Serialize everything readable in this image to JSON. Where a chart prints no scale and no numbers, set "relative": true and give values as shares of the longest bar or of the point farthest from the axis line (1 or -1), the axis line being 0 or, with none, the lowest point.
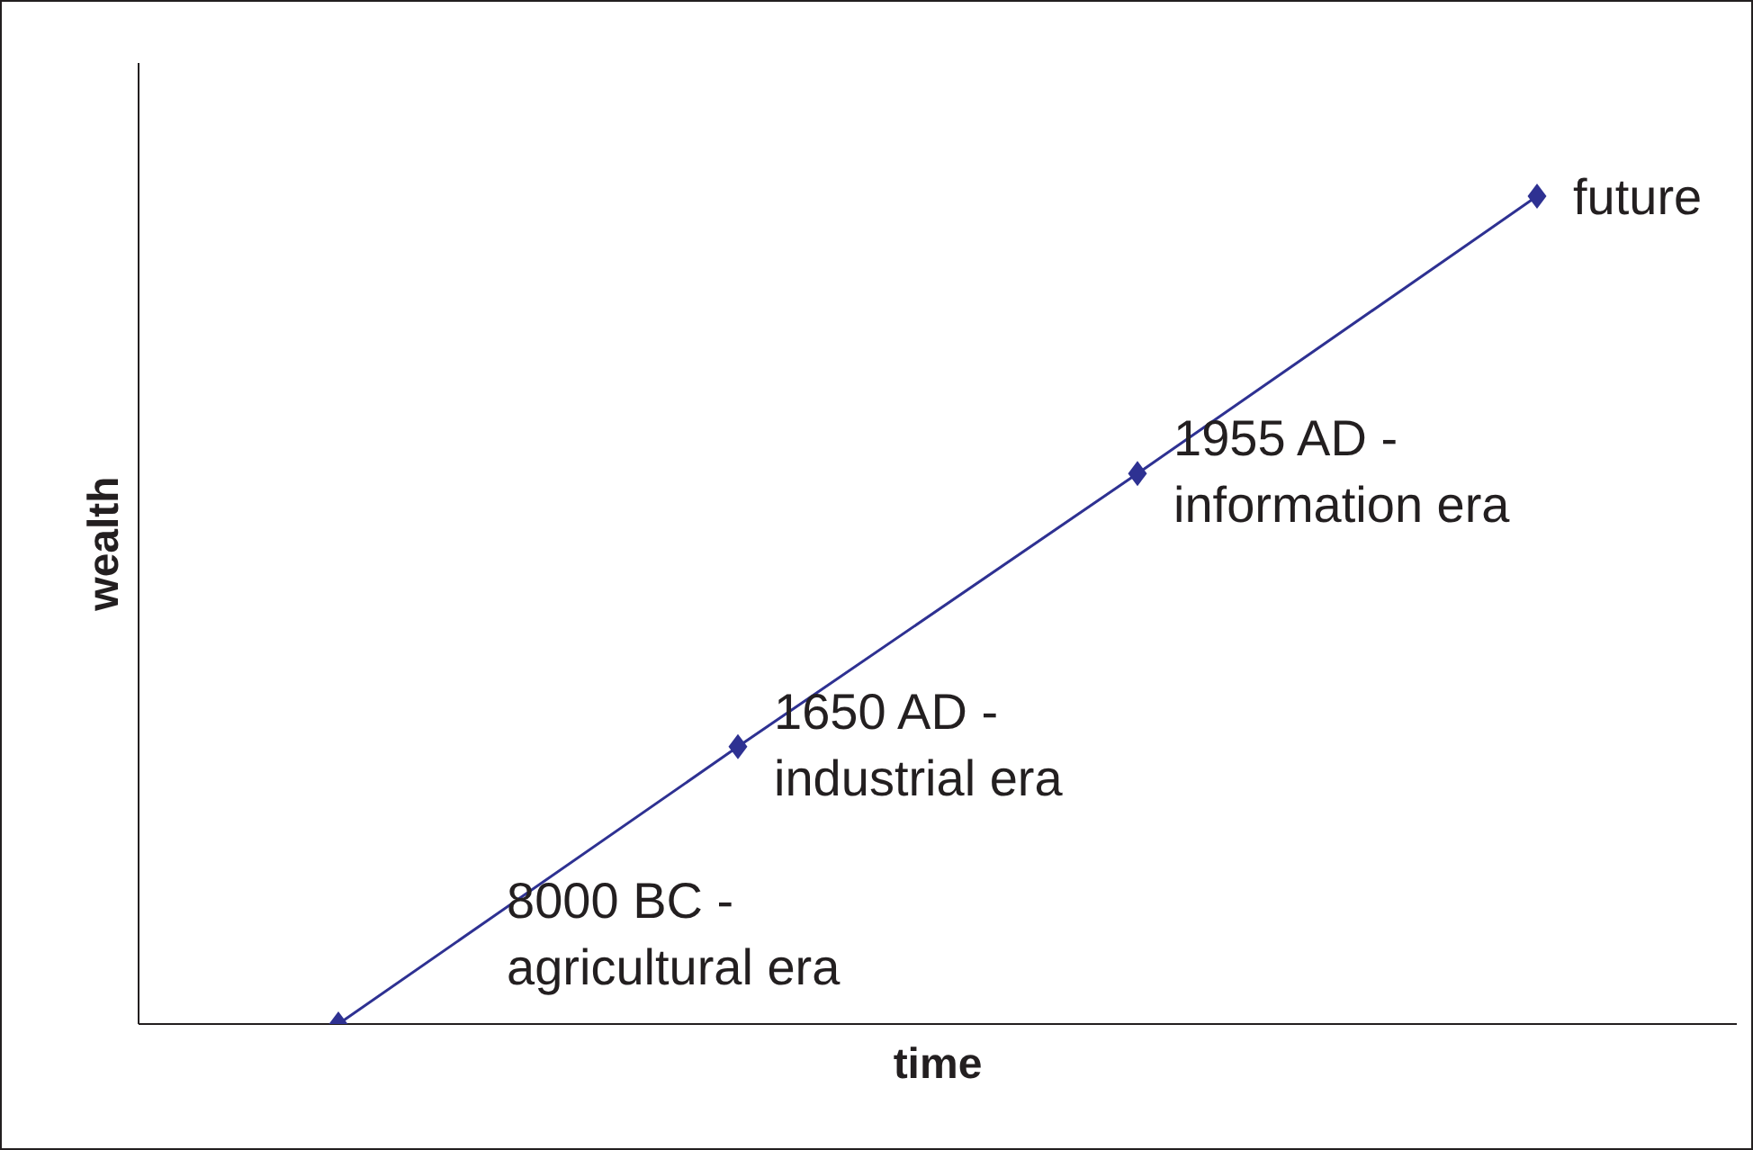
{
  "chart_data": {
    "type": "line",
    "xlabel": "time",
    "ylabel": "wealth",
    "relative": true,
    "categories": [
      null,
      null,
      null,
      null
    ],
    "series": [
      {
        "color": "#2e3192",
        "values": [
          0,
          0.335,
          0.665,
          1
        ]
      }
    ],
    "marker": "diamond",
    "line_style": "solid",
    "grid": false,
    "legend": false,
    "annotations": [
      "8000 BC -\nagricultural era",
      "1650 AD -\nindustrial era",
      "1955 AD -\ninformation era",
      "future"
    ]
  }
}
